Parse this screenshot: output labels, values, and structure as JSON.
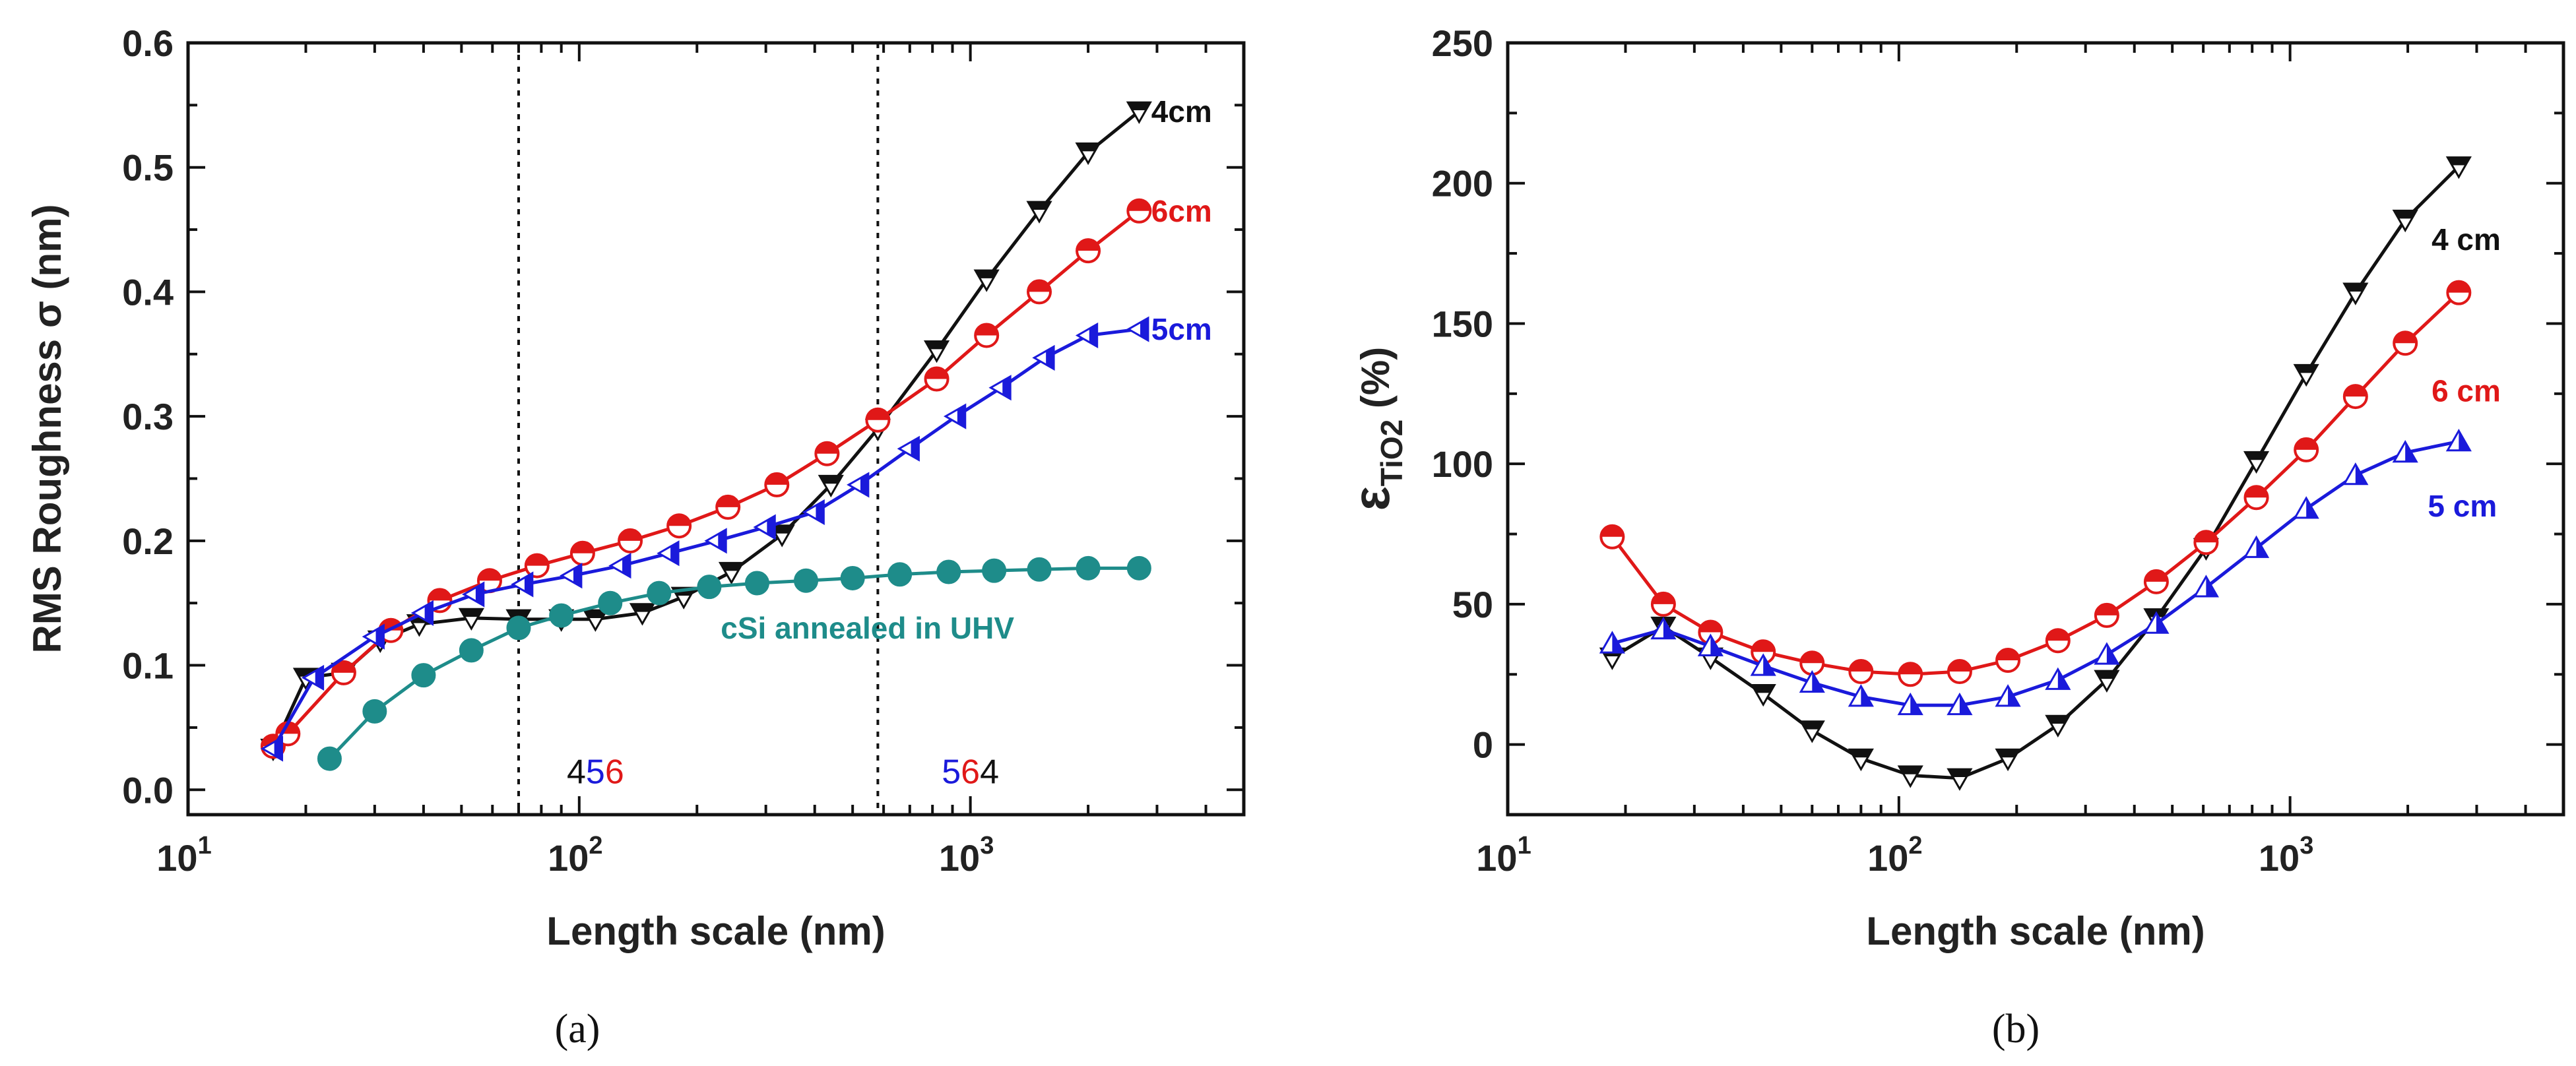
{
  "chart_data": [
    {
      "type": "line",
      "panel": "a",
      "panel_label": "(a)",
      "xlabel": "Length scale (nm)",
      "ylabel": "RMS Roughness σ (nm)",
      "xscale": "log",
      "xlim": [
        10,
        5000
      ],
      "ylim": [
        -0.02,
        0.6
      ],
      "x_ticks": [
        {
          "value": 10,
          "base": "10",
          "exp": "1"
        },
        {
          "value": 100,
          "base": "10",
          "exp": "2"
        },
        {
          "value": 1000,
          "base": "10",
          "exp": "3"
        }
      ],
      "y_ticks": [
        "0.0",
        "0.1",
        "0.2",
        "0.3",
        "0.4",
        "0.5",
        "0.6"
      ],
      "vertical_lines": [
        70,
        580
      ],
      "region_labels": [
        {
          "x": 110,
          "y": 0.0,
          "parts": [
            {
              "text": "4",
              "color": "#111111"
            },
            {
              "text": "5",
              "color": "#1a1adb"
            },
            {
              "text": "6",
              "color": "#e01818"
            }
          ]
        },
        {
          "x": 1000,
          "y": 0.0,
          "parts": [
            {
              "text": "5",
              "color": "#1a1adb"
            },
            {
              "text": "6",
              "color": "#e01818"
            },
            {
              "text": "4",
              "color": "#111111"
            }
          ]
        }
      ],
      "series": [
        {
          "name": "4cm",
          "color": "#111111",
          "marker": "triangle-down-half",
          "label_at": [
            2900,
            0.545
          ],
          "x": [
            16.5,
            20,
            25,
            31,
            39,
            53,
            70,
            90,
            110,
            145,
            185,
            245,
            330,
            440,
            580,
            820,
            1100,
            1500,
            2000,
            2700
          ],
          "values": [
            0.033,
            0.09,
            0.094,
            0.12,
            0.133,
            0.138,
            0.137,
            0.137,
            0.137,
            0.142,
            0.155,
            0.175,
            0.205,
            0.245,
            0.29,
            0.353,
            0.41,
            0.465,
            0.512,
            0.545
          ]
        },
        {
          "name": "6cm",
          "color": "#e01818",
          "marker": "circle-half",
          "label_at": [
            2900,
            0.465
          ],
          "x": [
            16.5,
            18,
            25,
            33,
            44,
            59,
            78,
            102,
            135,
            180,
            240,
            320,
            430,
            580,
            820,
            1100,
            1500,
            2000,
            2700
          ],
          "values": [
            0.035,
            0.045,
            0.094,
            0.128,
            0.152,
            0.168,
            0.18,
            0.19,
            0.2,
            0.212,
            0.227,
            0.245,
            0.27,
            0.297,
            0.33,
            0.365,
            0.4,
            0.433,
            0.465
          ]
        },
        {
          "name": "5cm",
          "color": "#1a1adb",
          "marker": "triangle-left-half",
          "label_at": [
            2900,
            0.37
          ],
          "x": [
            16.5,
            21,
            30,
            40,
            54,
            72,
            96,
            128,
            170,
            225,
            300,
            400,
            520,
            700,
            920,
            1200,
            1550,
            2000,
            2700
          ],
          "values": [
            0.033,
            0.09,
            0.123,
            0.142,
            0.157,
            0.165,
            0.172,
            0.18,
            0.19,
            0.2,
            0.211,
            0.223,
            0.245,
            0.274,
            0.3,
            0.323,
            0.347,
            0.365,
            0.37
          ]
        },
        {
          "name": "cSi annealed in UHV",
          "color": "#1e8c8a",
          "marker": "circle-filled",
          "label_at": [
            230,
            0.13
          ],
          "x": [
            23,
            30,
            40,
            53,
            70,
            90,
            120,
            160,
            215,
            285,
            380,
            500,
            660,
            880,
            1150,
            1500,
            2000,
            2700
          ],
          "values": [
            0.025,
            0.063,
            0.092,
            0.112,
            0.13,
            0.14,
            0.15,
            0.158,
            0.163,
            0.166,
            0.168,
            0.17,
            0.173,
            0.175,
            0.176,
            0.177,
            0.178,
            0.178
          ]
        }
      ]
    },
    {
      "type": "line",
      "panel": "b",
      "panel_label": "(b)",
      "xlabel": "Length scale (nm)",
      "ylabel": "εTiO2 (%)",
      "ylabel_symbol": "ε",
      "ylabel_sub": "TiO2",
      "ylabel_unit": " (%)",
      "xscale": "log",
      "xlim": [
        10,
        5000
      ],
      "ylim": [
        -25,
        250
      ],
      "x_ticks": [
        {
          "value": 10,
          "base": "10",
          "exp": "1"
        },
        {
          "value": 100,
          "base": "10",
          "exp": "2"
        },
        {
          "value": 1000,
          "base": "10",
          "exp": "3"
        }
      ],
      "y_ticks": [
        "0",
        "50",
        "100",
        "150",
        "200",
        "250"
      ],
      "series": [
        {
          "name": "4 cm",
          "color": "#111111",
          "marker": "triangle-down-half",
          "label_at": [
            2300,
            180
          ],
          "x": [
            18.5,
            25,
            33,
            45,
            60,
            80,
            107,
            143,
            190,
            255,
            340,
            455,
            610,
            820,
            1100,
            1470,
            1970,
            2700
          ],
          "values": [
            31,
            42,
            31,
            18,
            5,
            -5,
            -11,
            -12,
            -5,
            7,
            23,
            45,
            70,
            101,
            132,
            161,
            187,
            206
          ]
        },
        {
          "name": "6 cm",
          "color": "#e01818",
          "marker": "circle-half",
          "label_at": [
            2300,
            126
          ],
          "x": [
            18.5,
            25,
            33,
            45,
            60,
            80,
            107,
            143,
            190,
            255,
            340,
            455,
            610,
            820,
            1100,
            1470,
            1970,
            2700
          ],
          "values": [
            74,
            50,
            40,
            33,
            29,
            26,
            25,
            26,
            30,
            37,
            46,
            58,
            72,
            88,
            105,
            124,
            143,
            161
          ]
        },
        {
          "name": "5 cm",
          "color": "#1a1adb",
          "marker": "triangle-up-half",
          "label_at": [
            2250,
            85
          ],
          "x": [
            18.5,
            25,
            33,
            45,
            60,
            80,
            107,
            143,
            190,
            255,
            340,
            455,
            610,
            820,
            1100,
            1470,
            1970,
            2700
          ],
          "values": [
            36,
            41,
            35,
            28,
            22,
            17,
            14,
            14,
            17,
            23,
            32,
            43,
            56,
            70,
            84,
            96,
            104,
            108
          ]
        }
      ]
    }
  ]
}
